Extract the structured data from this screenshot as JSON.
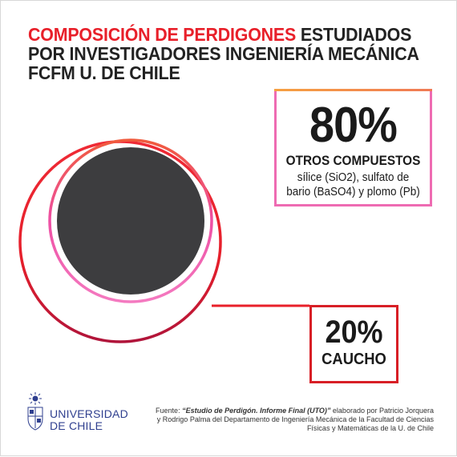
{
  "title": {
    "highlight": "COMPOSICIÓN DE PERDIGONES",
    "line1_rest": " ESTUDIADOS",
    "line2": "POR INVESTIGADORES INGENIERÍA MECÁNICA",
    "line3": "FCFM U. DE CHILE"
  },
  "stats": {
    "major": {
      "percent": "80%",
      "label": "OTROS COMPUESTOS",
      "detail": "sílice (SiO2), sulfato de bario (BaSO4) y plomo (Pb)"
    },
    "minor": {
      "percent": "20%",
      "label": "CAUCHO"
    }
  },
  "chart_data": {
    "type": "pie",
    "categories": [
      "OTROS COMPUESTOS",
      "CAUCHO"
    ],
    "values": [
      80,
      20
    ]
  },
  "logo": {
    "line1": "UNIVERSIDAD",
    "line2": "DE CHILE"
  },
  "source": {
    "prefix": "Fuente: ",
    "title_italic": "“Estudio de Perdigón. Informe Final (UTO)”",
    "rest": " elaborado por Patricio Jorquera y Rodrigo Palma del Departamento de Ingeniería Mecánica de la Facultad de Ciencias Físicas y Matemáticas de la U. de Chile"
  },
  "colors": {
    "accent_red": "#e8202a",
    "pink": "#ee6bb2",
    "orange": "#f6a142",
    "dark_circle": "#3d3d3f",
    "university_blue": "#2f3f8f"
  }
}
